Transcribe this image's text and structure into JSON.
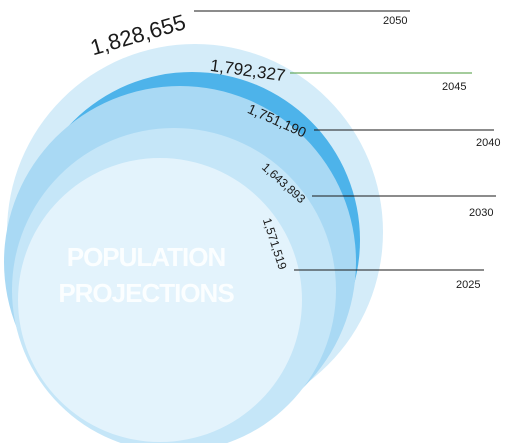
{
  "title": {
    "line1": "POPULATION",
    "line2": "PROJECTIONS"
  },
  "projections": [
    {
      "year": "2050",
      "value": "1,828,655"
    },
    {
      "year": "2045",
      "value": "1,792,327"
    },
    {
      "year": "2040",
      "value": "1,751,190"
    },
    {
      "year": "2030",
      "value": "1,643,893"
    },
    {
      "year": "2025",
      "value": "1,571,519"
    }
  ],
  "colors": {
    "circle_2050": "#d4ecf9",
    "circle_2045": "#4db3ea",
    "circle_2040": "#a9d9f4",
    "circle_2030": "#c5e6f8",
    "circle_2025": "#e3f3fc",
    "leader_2045": "#4a9a3a",
    "leader_default": "#1a1a1a"
  }
}
